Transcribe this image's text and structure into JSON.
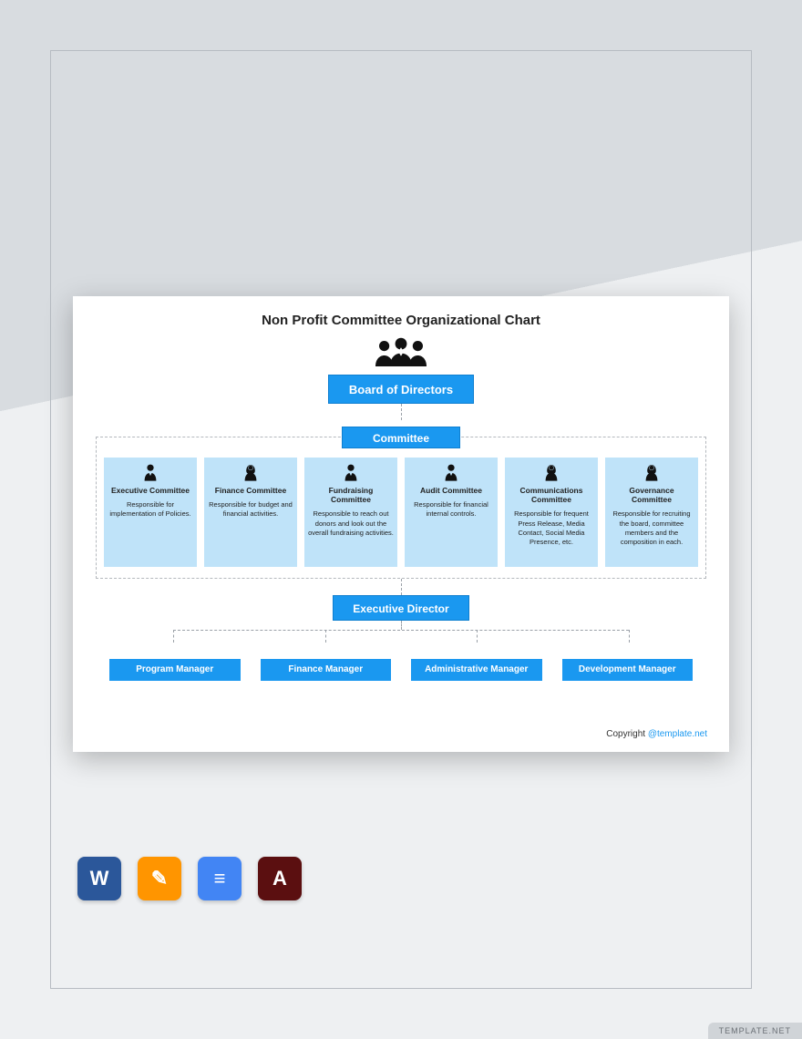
{
  "background": {
    "top_color": "#d8dce0",
    "bottom_color": "#eef0f2",
    "frame_border_color": "#b7bcc2"
  },
  "chart": {
    "title": "Non Profit Committee Organizational Chart",
    "title_fontsize": 15,
    "card_bg": "#ffffff",
    "primary_color": "#1a98f0",
    "primary_border": "#0f7fd0",
    "light_color": "#bfe3f9",
    "dash_color": "#9aa0a7",
    "board": {
      "label": "Board of Directors"
    },
    "committee_label": "Committee",
    "committees": [
      {
        "title": "Executive Committee",
        "desc": "Responsible for implementation of Policies.",
        "icon": "male"
      },
      {
        "title": "Finance Committee",
        "desc": "Responsible for budget and financial activities.",
        "icon": "female"
      },
      {
        "title": "Fundraising Committee",
        "desc": "Responsible to reach out donors and look out the overall fundraising activities.",
        "icon": "male"
      },
      {
        "title": "Audit Committee",
        "desc": "Responsible for financial internal controls.",
        "icon": "male"
      },
      {
        "title": "Communications Committee",
        "desc": "Responsible for frequent Press Release, Media Contact, Social Media Presence, etc.",
        "icon": "female"
      },
      {
        "title": "Governance Committee",
        "desc": "Responsible for recruiting the board, committee members and the composition in each.",
        "icon": "female"
      }
    ],
    "exec_director": "Executive Director",
    "managers": [
      "Program Manager",
      "Finance Manager",
      "Administrative Manager",
      "Development Manager"
    ],
    "copyright_prefix": "Copyright ",
    "copyright_link": "@template.net"
  },
  "app_icons": {
    "word": {
      "bg": "#2b579a",
      "glyph": "W"
    },
    "pages": {
      "bg": "#ff9500",
      "glyph": "✎"
    },
    "gdocs": {
      "bg": "#4285f4",
      "glyph": "≡"
    },
    "pdf": {
      "bg": "#5b0f10",
      "glyph": "A"
    }
  },
  "watermark": "TEMPLATE.NET"
}
